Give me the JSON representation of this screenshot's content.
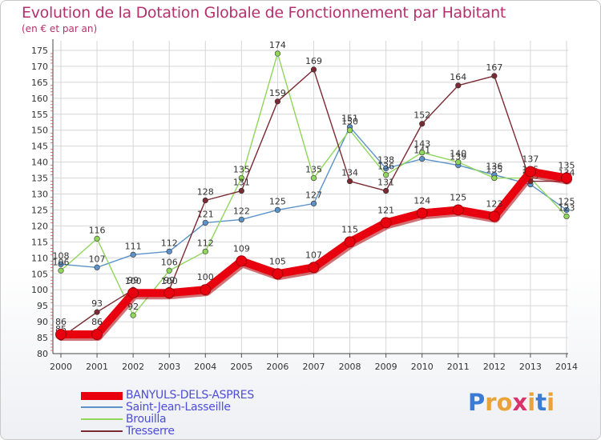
{
  "header": {
    "title": "Evolution de la Dotation Globale de Fonctionnement par Habitant",
    "subtitle": "(en € et par an)"
  },
  "logo": {
    "text": "Proxiti",
    "colors": [
      "#3a7bd5",
      "#e8a33b",
      "#e8a33b",
      "#d9336a",
      "#e8a33b",
      "#3a7bd5",
      "#e8a33b"
    ]
  },
  "chart_data": {
    "type": "line",
    "title": "Evolution de la Dotation Globale de Fonctionnement par Habitant",
    "subtitle": "(en € et par an)",
    "xlabel": "",
    "ylabel": "",
    "x": [
      "2000",
      "2001",
      "2002",
      "2003",
      "2004",
      "2005",
      "2006",
      "2007",
      "2008",
      "2009",
      "2010",
      "2011",
      "2012",
      "2013",
      "2014"
    ],
    "ylim": [
      80,
      178
    ],
    "yticks": [
      80,
      85,
      90,
      95,
      100,
      105,
      110,
      115,
      120,
      125,
      130,
      135,
      140,
      145,
      150,
      155,
      160,
      165,
      170,
      175
    ],
    "grid": true,
    "legend_position": "bottom-left",
    "series": [
      {
        "name": "Saint-Jean-Lasseille",
        "color": "#5b93c9",
        "values": [
          108,
          107,
          111,
          112,
          121,
          122,
          125,
          127,
          151,
          138,
          141,
          139,
          136,
          133,
          125
        ]
      },
      {
        "name": "Brouilla",
        "color": "#8fd65a",
        "values": [
          106,
          116,
          92,
          106,
          112,
          135,
          174,
          135,
          150,
          136,
          143,
          140,
          135,
          135,
          123
        ]
      },
      {
        "name": "Tresserre",
        "color": "#7a2a32",
        "values": [
          85,
          93,
          100,
          100,
          128,
          131,
          159,
          169,
          134,
          131,
          152,
          164,
          167,
          134,
          134
        ]
      },
      {
        "name": "BANYULS-DELS-ASPRES",
        "color": "#e8000e",
        "values": [
          86,
          86,
          99,
          99,
          100,
          109,
          105,
          107,
          115,
          121,
          124,
          125,
          123,
          137,
          135
        ]
      }
    ]
  }
}
